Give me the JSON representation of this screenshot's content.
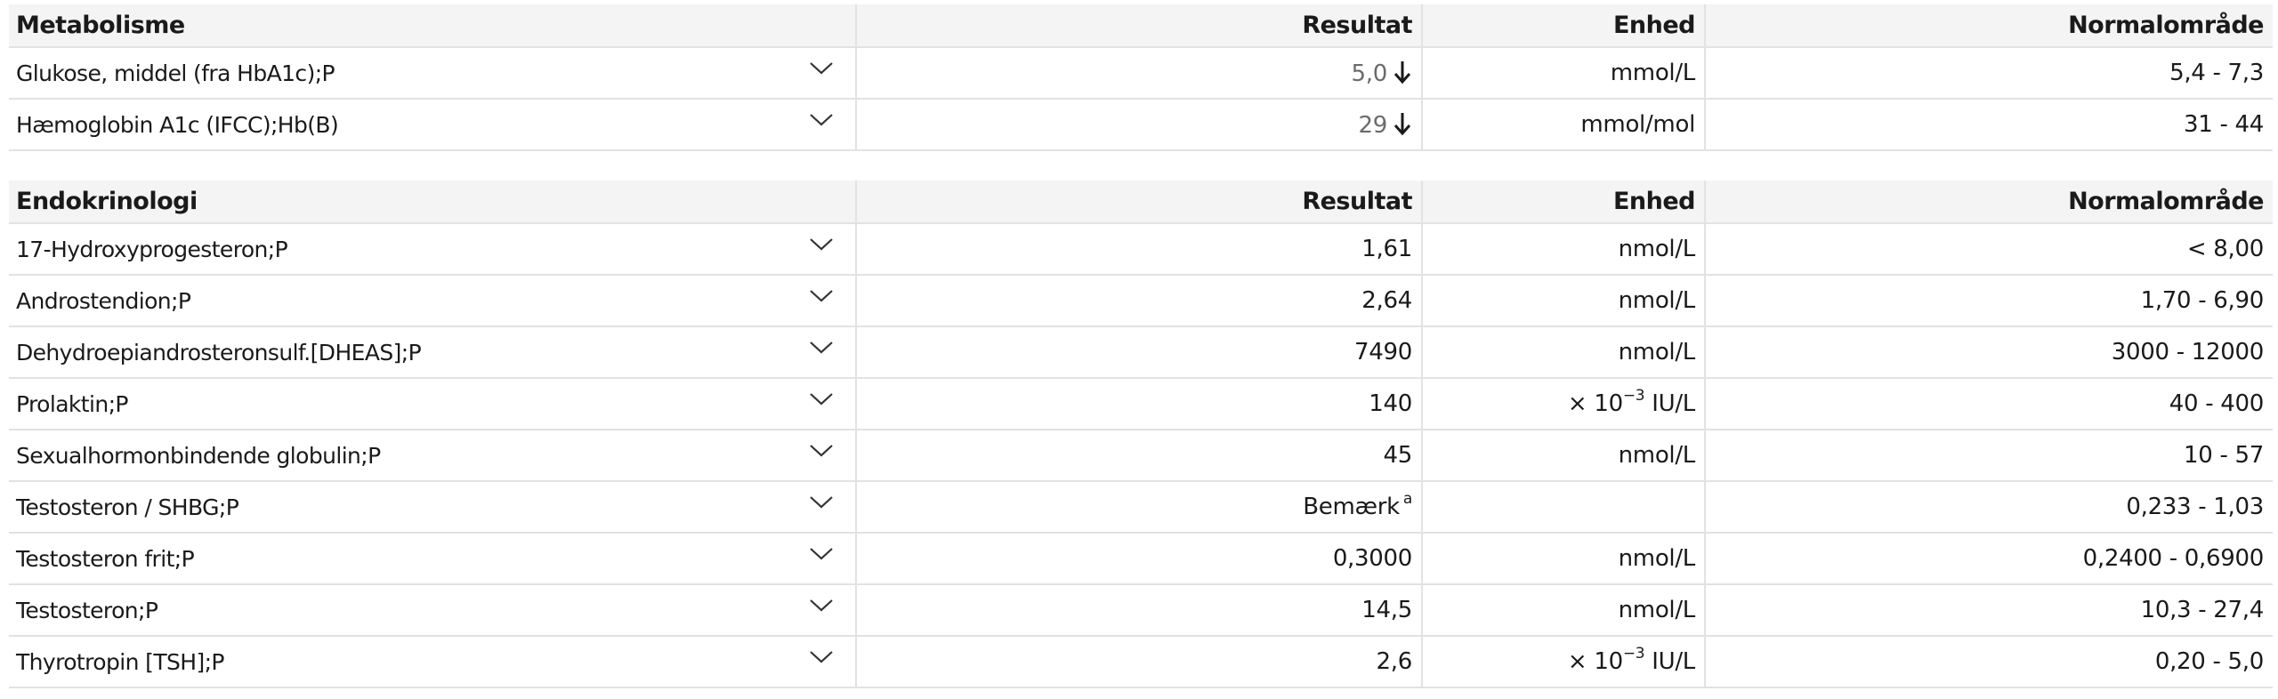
{
  "sections": [
    {
      "title": "Metabolisme",
      "columns": {
        "result": "Resultat",
        "unit": "Enhed",
        "range": "Normalområde"
      },
      "rows": [
        {
          "name": "Glukose, middel (fra HbA1c);P",
          "result": "5,0",
          "flag": "low",
          "unit": "mmol/L",
          "range": "5,4 - 7,3"
        },
        {
          "name": "Hæmoglobin A1c (IFCC);Hb(B)",
          "result": "29",
          "flag": "low",
          "unit": "mmol/mol",
          "range": "31 - 44"
        }
      ]
    },
    {
      "title": "Endokrinologi",
      "columns": {
        "result": "Resultat",
        "unit": "Enhed",
        "range": "Normalområde"
      },
      "rows": [
        {
          "name": "17-Hydroxyprogesteron;P",
          "result": "1,61",
          "flag": "",
          "unit": "nmol/L",
          "range": "< 8,00"
        },
        {
          "name": "Androstendion;P",
          "result": "2,64",
          "flag": "",
          "unit": "nmol/L",
          "range": "1,70 - 6,90"
        },
        {
          "name": "Dehydroepiandrosteronsulf.[DHEAS];P",
          "result": "7490",
          "flag": "",
          "unit": "nmol/L",
          "range": "3000 - 12000"
        },
        {
          "name": "Prolaktin;P",
          "result": "140",
          "flag": "",
          "unit_prefix": "× 10",
          "unit_exp": "−3",
          "unit_suffix": " IU/L",
          "range": "40 - 400"
        },
        {
          "name": "Sexualhormonbindende globulin;P",
          "result": "45",
          "flag": "",
          "unit": "nmol/L",
          "range": "10 - 57"
        },
        {
          "name": "Testosteron / SHBG;P",
          "result": "Bemærk",
          "result_note": "a",
          "flag": "",
          "unit": "",
          "range": "0,233 - 1,03"
        },
        {
          "name": "Testosteron frit;P",
          "result": "0,3000",
          "flag": "",
          "unit": "nmol/L",
          "range": "0,2400 - 0,6900"
        },
        {
          "name": "Testosteron;P",
          "result": "14,5",
          "flag": "",
          "unit": "nmol/L",
          "range": "10,3 - 27,4"
        },
        {
          "name": "Thyrotropin [TSH];P",
          "result": "2,6",
          "flag": "",
          "unit_prefix": "× 10",
          "unit_exp": "−3",
          "unit_suffix": " IU/L",
          "range": "0,20 - 5,0"
        }
      ]
    }
  ],
  "icons": {
    "expand": "chevron-down-icon",
    "low_flag": "arrow-down-icon"
  },
  "colors": {
    "header_bg": "#f4f4f4",
    "border": "#e2e2e2",
    "low_text": "#6b6b6b"
  }
}
